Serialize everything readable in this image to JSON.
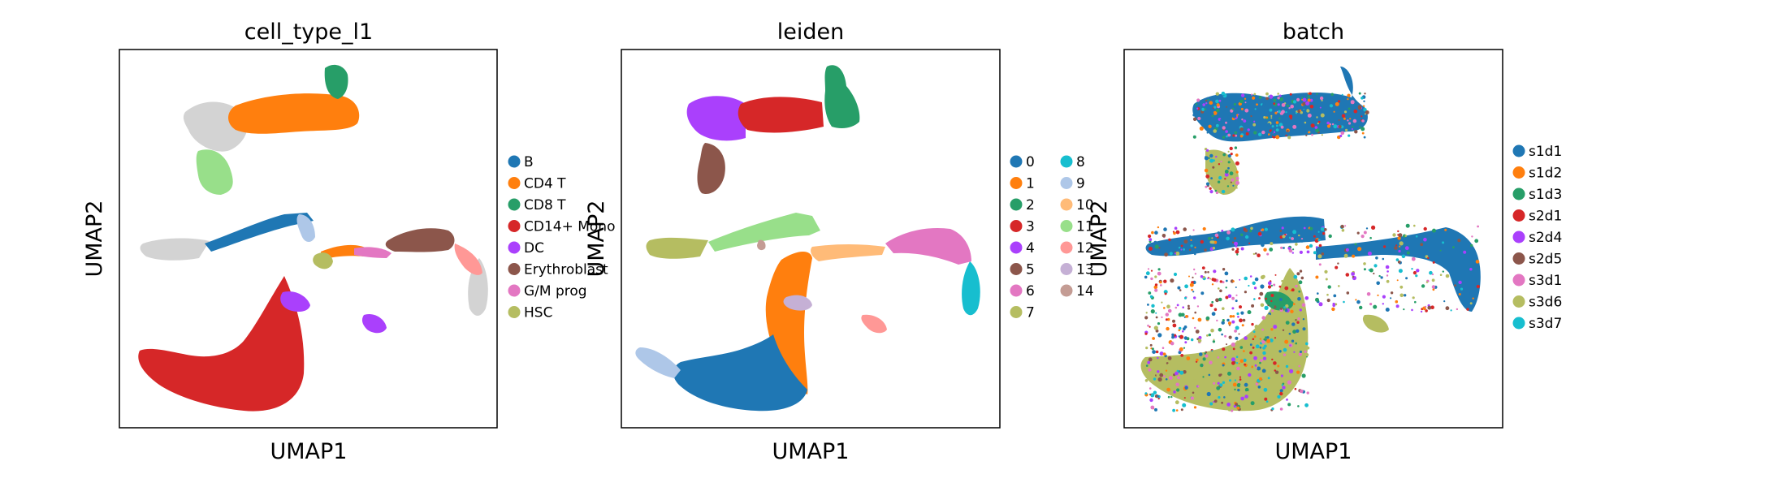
{
  "figure": {
    "background": "#ffffff"
  },
  "chart_data": [
    {
      "type": "scatter",
      "title": "cell_type_l1",
      "xlabel": "UMAP1",
      "ylabel": "UMAP2",
      "grid": false,
      "legend_placement": "right",
      "legend": [
        {
          "label": "B",
          "color": "#1f77b4"
        },
        {
          "label": "CD4 T",
          "color": "#ff7f0e"
        },
        {
          "label": "CD8 T",
          "color": "#279e68"
        },
        {
          "label": "CD14+ Mono",
          "color": "#d62728"
        },
        {
          "label": "DC",
          "color": "#aa40fc"
        },
        {
          "label": "Erythroblast",
          "color": "#8c564b"
        },
        {
          "label": "G/M prog",
          "color": "#e377c2"
        },
        {
          "label": "HSC",
          "color": "#b5bd61"
        }
      ],
      "unlabeled_color": "#d3d3d3"
    },
    {
      "type": "scatter",
      "title": "leiden",
      "xlabel": "UMAP1",
      "ylabel": "UMAP2",
      "grid": false,
      "legend_placement": "right",
      "legend": [
        {
          "label": "0",
          "color": "#1f77b4"
        },
        {
          "label": "1",
          "color": "#ff7f0e"
        },
        {
          "label": "2",
          "color": "#279e68"
        },
        {
          "label": "3",
          "color": "#d62728"
        },
        {
          "label": "4",
          "color": "#aa40fc"
        },
        {
          "label": "5",
          "color": "#8c564b"
        },
        {
          "label": "6",
          "color": "#e377c2"
        },
        {
          "label": "7",
          "color": "#b5bd61"
        },
        {
          "label": "8",
          "color": "#17becf"
        },
        {
          "label": "9",
          "color": "#aec7e8"
        },
        {
          "label": "10",
          "color": "#ffbb78"
        },
        {
          "label": "11",
          "color": "#98df8a"
        },
        {
          "label": "12",
          "color": "#ff9896"
        },
        {
          "label": "13",
          "color": "#c5b0d5"
        },
        {
          "label": "14",
          "color": "#c49c94"
        }
      ]
    },
    {
      "type": "scatter",
      "title": "batch",
      "xlabel": "UMAP1",
      "ylabel": "UMAP2",
      "grid": false,
      "legend_placement": "right",
      "legend": [
        {
          "label": "s1d1",
          "color": "#1f77b4"
        },
        {
          "label": "s1d2",
          "color": "#ff7f0e"
        },
        {
          "label": "s1d3",
          "color": "#279e68"
        },
        {
          "label": "s2d1",
          "color": "#d62728"
        },
        {
          "label": "s2d4",
          "color": "#aa40fc"
        },
        {
          "label": "s2d5",
          "color": "#8c564b"
        },
        {
          "label": "s3d1",
          "color": "#e377c2"
        },
        {
          "label": "s3d6",
          "color": "#b5bd61"
        },
        {
          "label": "s3d7",
          "color": "#17becf"
        }
      ]
    }
  ]
}
